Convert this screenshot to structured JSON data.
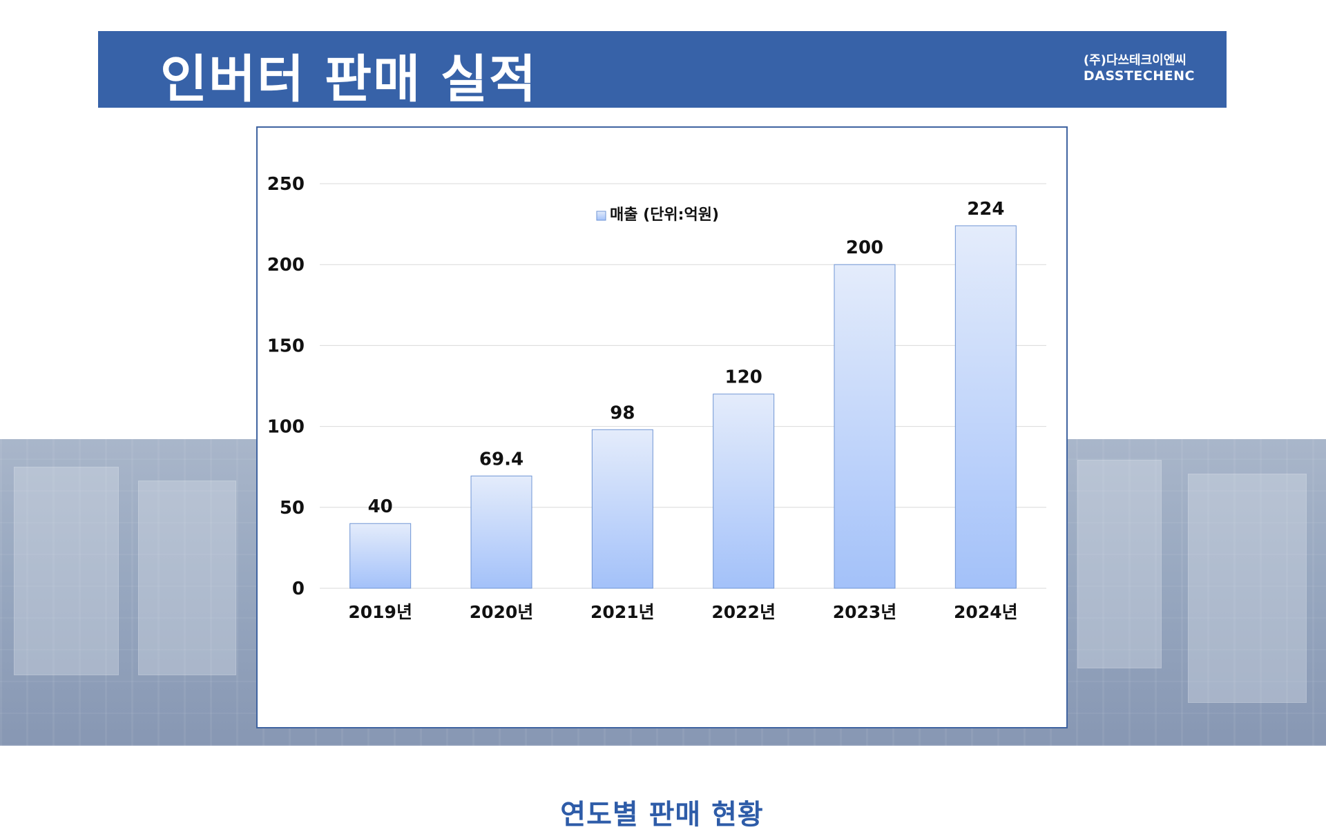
{
  "header": {
    "title": "인버터 판매 실적",
    "company_kr": "(주)다쓰테크이엔씨",
    "company_en": "DASSTECHENC"
  },
  "colors": {
    "header_bg": "#3762a8",
    "bar_top": "#e4ecfb",
    "bar_bottom": "#a3c1f9",
    "bar_stroke": "#6f95d4",
    "chart_title": "#2e5ca8"
  },
  "chart_data": {
    "type": "bar",
    "title": "연도별 판매 현황",
    "categories": [
      "2019년",
      "2020년",
      "2021년",
      "2022년",
      "2023년",
      "2024년"
    ],
    "series": [
      {
        "name": "매출 (단위:억원)",
        "values": [
          40,
          69.4,
          98,
          120,
          200,
          224
        ]
      }
    ],
    "data_labels": [
      "40",
      "69.4",
      "98",
      "120",
      "200",
      "224"
    ],
    "yticks": [
      0,
      50,
      100,
      150,
      200,
      250
    ],
    "ylim": [
      0,
      250
    ],
    "grid": true,
    "legend_position": "top-center"
  }
}
